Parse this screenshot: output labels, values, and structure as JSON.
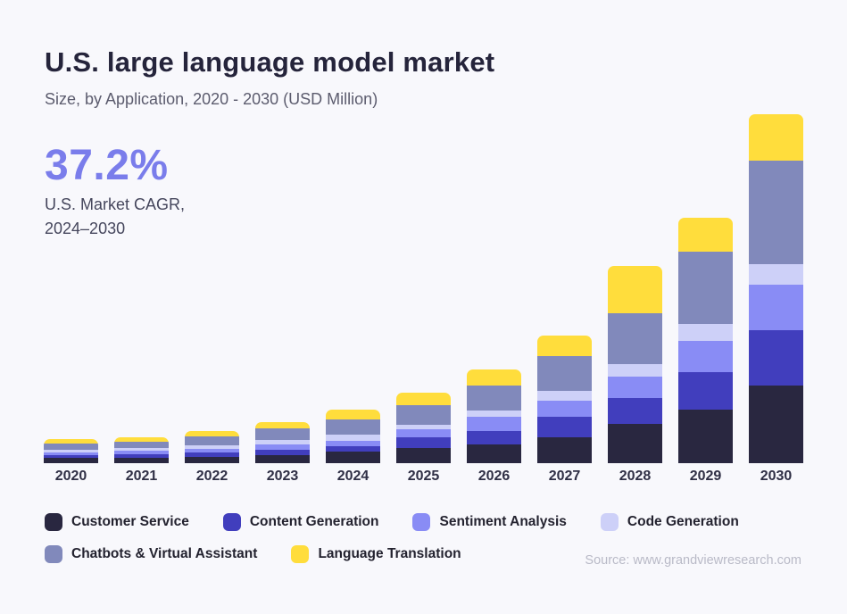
{
  "page": {
    "title": "U.S. large language model market",
    "subtitle": "Size, by Application, 2020 - 2030 (USD Million)",
    "source": "Source: www.grandviewresearch.com",
    "background_color": "#F8F8FC"
  },
  "cagr": {
    "value": "37.2%",
    "label_line1": "U.S. Market CAGR,",
    "label_line2": "2024–2030",
    "number_color": "#7A7DEB"
  },
  "chart_data": {
    "type": "bar",
    "stacked": true,
    "orientation": "vertical",
    "title": "U.S. large language model market",
    "subtitle": "Size, by Application, 2020 - 2030 (USD Million)",
    "value_unit": "USD Million",
    "value_note": "no numeric y-axis shown in figure; series values are pixel-proportional estimates of segment heights",
    "grid": false,
    "y_axis_visible": false,
    "legend_position": "bottom",
    "categories": [
      "2020",
      "2021",
      "2022",
      "2023",
      "2024",
      "2025",
      "2026",
      "2027",
      "2028",
      "2029",
      "2030"
    ],
    "series": [
      {
        "name": "Customer Service",
        "color": "#292740",
        "values": [
          6,
          6,
          7,
          9,
          13,
          17,
          21,
          29,
          44,
          60,
          87
        ]
      },
      {
        "name": "Content Generation",
        "color": "#413EBD",
        "values": [
          3,
          4,
          5,
          6,
          6,
          12,
          15,
          23,
          29,
          42,
          62
        ]
      },
      {
        "name": "Sentiment Analysis",
        "color": "#898CF5",
        "values": [
          3,
          4,
          4,
          6,
          6,
          9,
          16,
          18,
          24,
          35,
          51
        ]
      },
      {
        "name": "Code Generation",
        "color": "#CDD0F8",
        "values": [
          3,
          3,
          4,
          5,
          7,
          5,
          7,
          11,
          14,
          19,
          23
        ]
      },
      {
        "name": "Chatbots & Virtual Assistant",
        "color": "#8189BB",
        "values": [
          7,
          7,
          10,
          13,
          17,
          22,
          28,
          39,
          57,
          81,
          116
        ]
      },
      {
        "name": "Language Translation",
        "color": "#FFDD3C",
        "values": [
          5,
          5,
          6,
          7,
          11,
          14,
          18,
          23,
          53,
          38,
          52
        ]
      }
    ],
    "stack_totals": [
      27,
      29,
      36,
      46,
      60,
      79,
      105,
      143,
      221,
      275,
      391
    ]
  },
  "legend": {
    "row_break_index": 4
  }
}
